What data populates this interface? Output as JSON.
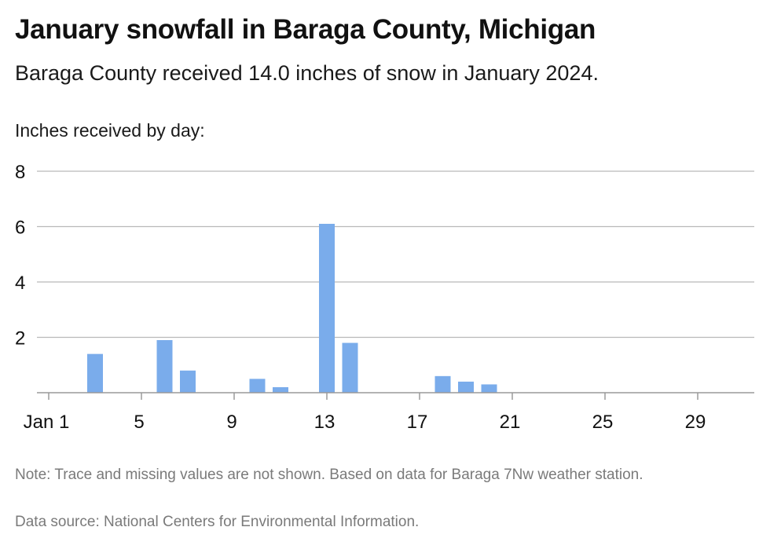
{
  "title": "January snowfall in Baraga County, Michigan",
  "subtitle": "Baraga County received 14.0 inches of snow in January 2024.",
  "note": "Note: Trace and missing values are not shown. Based on data for Baraga 7Nw weather station.",
  "source": "Data source: National Centers for Environmental Information.",
  "chart_data": {
    "type": "bar",
    "ylabel": "Inches received by day:",
    "xlabel": "",
    "ylim": [
      0,
      8
    ],
    "yticks": [
      2,
      4,
      6,
      8
    ],
    "xlim": [
      1,
      31
    ],
    "xticks": [
      {
        "day": 1,
        "label": "Jan 1"
      },
      {
        "day": 5,
        "label": "5"
      },
      {
        "day": 9,
        "label": "9"
      },
      {
        "day": 13,
        "label": "13"
      },
      {
        "day": 17,
        "label": "17"
      },
      {
        "day": 21,
        "label": "21"
      },
      {
        "day": 25,
        "label": "25"
      },
      {
        "day": 29,
        "label": "29"
      }
    ],
    "grid": true,
    "bar_color": "#7aaceb",
    "points": [
      {
        "day": 3,
        "value": 1.4
      },
      {
        "day": 6,
        "value": 1.9
      },
      {
        "day": 7,
        "value": 0.8
      },
      {
        "day": 10,
        "value": 0.5
      },
      {
        "day": 11,
        "value": 0.2
      },
      {
        "day": 13,
        "value": 6.1
      },
      {
        "day": 14,
        "value": 1.8
      },
      {
        "day": 18,
        "value": 0.6
      },
      {
        "day": 19,
        "value": 0.4
      },
      {
        "day": 20,
        "value": 0.3
      }
    ]
  }
}
